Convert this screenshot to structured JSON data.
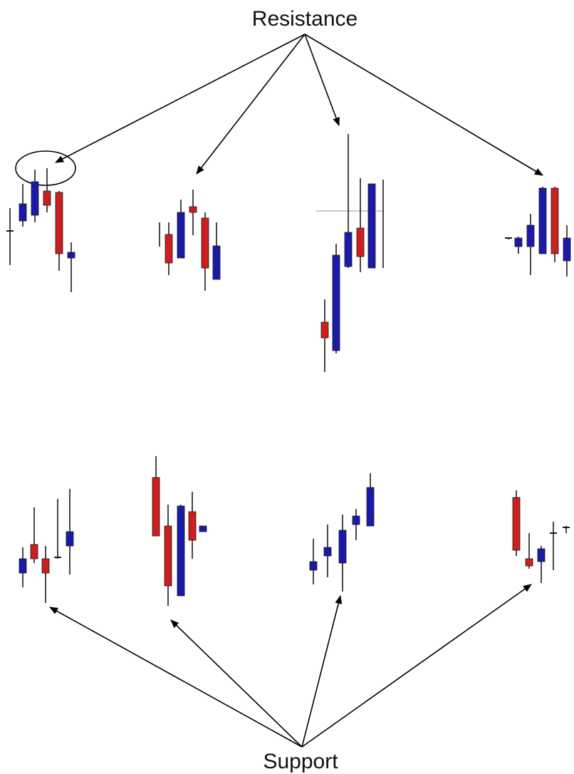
{
  "labels": {
    "resistance": "Resistance",
    "support": "Support"
  },
  "colors": {
    "bullish": "#1a1aa8",
    "bearish": "#cc1f1f",
    "wick": "#1a1a1a",
    "arrow": "#000000",
    "background": "#ffffff"
  },
  "groups": [
    {
      "id": "resistance-1",
      "kind": "resistance",
      "highlighted": true,
      "candles": [
        {
          "o": 0,
          "c": 0,
          "h": 0,
          "l": 0,
          "dir": "doji"
        }
      ]
    }
  ]
}
